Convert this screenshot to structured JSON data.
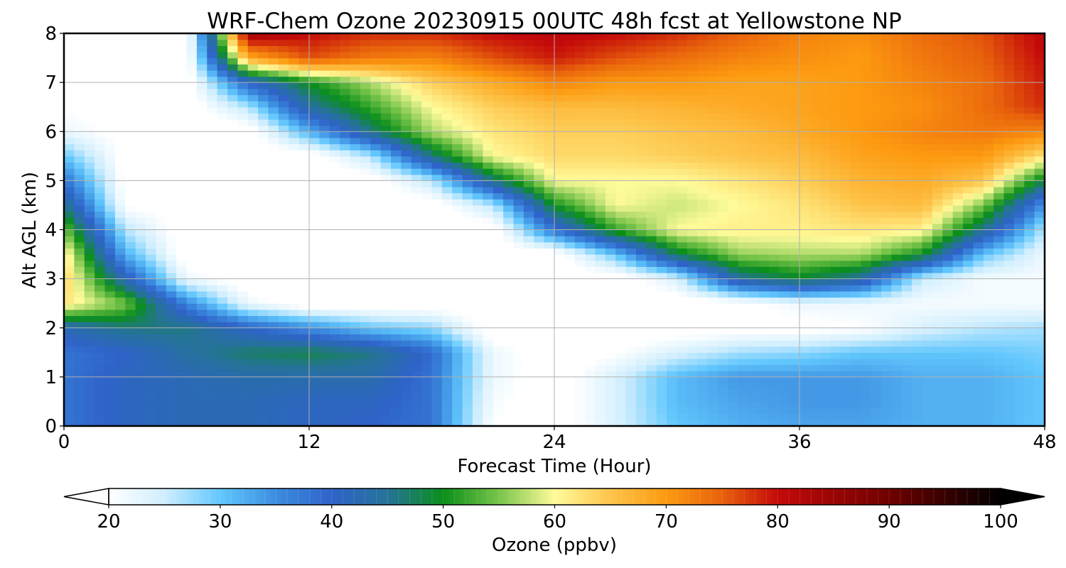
{
  "chart_data": {
    "type": "heatmap",
    "title": "WRF-Chem Ozone  20230915 00UTC 48h fcst at Yellowstone NP",
    "xlabel": "Forecast Time (Hour)",
    "ylabel": "Alt AGL (km)",
    "xlim": [
      0,
      48
    ],
    "ylim": [
      0,
      8
    ],
    "xticks": [
      0,
      12,
      24,
      36,
      48
    ],
    "yticks": [
      0,
      1,
      2,
      3,
      4,
      5,
      6,
      7,
      8
    ],
    "grid": true,
    "x": [
      0,
      3,
      6,
      9,
      12,
      15,
      18,
      21,
      24,
      27,
      30,
      33,
      36,
      39,
      42,
      45,
      48
    ],
    "y": [
      0,
      0.5,
      1,
      1.5,
      2,
      2.5,
      3,
      3.5,
      4,
      4.5,
      5,
      5.5,
      6,
      6.5,
      7,
      7.5,
      8
    ],
    "z": [
      [
        38,
        41,
        42,
        42,
        41,
        40,
        38,
        20,
        18,
        24,
        30,
        32,
        33,
        33,
        32,
        32,
        30
      ],
      [
        38,
        41,
        42,
        42,
        41,
        41,
        38,
        21,
        18,
        24,
        31,
        33,
        34,
        34,
        32,
        32,
        30
      ],
      [
        38,
        41,
        42,
        43,
        43,
        43,
        38,
        22,
        18,
        24,
        31,
        34,
        34,
        34,
        32,
        32,
        30
      ],
      [
        38,
        40,
        44,
        47,
        48,
        46,
        39,
        22,
        18,
        20,
        24,
        27,
        28,
        30,
        30,
        30,
        29
      ],
      [
        42,
        46,
        46,
        40,
        35,
        30,
        28,
        18,
        18,
        18,
        18,
        19,
        19,
        20,
        24,
        26,
        27
      ],
      [
        62,
        55,
        36,
        22,
        18,
        18,
        18,
        18,
        18,
        18,
        18,
        19,
        22,
        22,
        21,
        21,
        21
      ],
      [
        64,
        42,
        22,
        18,
        18,
        18,
        18,
        18,
        18,
        18,
        24,
        44,
        49,
        44,
        25,
        21,
        21
      ],
      [
        62,
        32,
        18,
        18,
        18,
        18,
        18,
        18,
        18,
        30,
        48,
        56,
        57,
        57,
        50,
        30,
        22
      ],
      [
        55,
        26,
        18,
        18,
        18,
        18,
        18,
        18,
        38,
        52,
        60,
        61,
        61,
        62,
        61,
        45,
        26
      ],
      [
        46,
        20,
        18,
        18,
        18,
        18,
        18,
        26,
        50,
        60,
        58,
        60,
        62,
        65,
        66,
        55,
        34
      ],
      [
        38,
        19,
        18,
        18,
        18,
        18,
        26,
        46,
        60,
        60,
        60,
        62,
        64,
        67,
        68,
        65,
        48
      ],
      [
        30,
        19,
        18,
        18,
        18,
        26,
        46,
        60,
        63,
        63,
        64,
        65,
        66,
        69,
        70,
        70,
        62
      ],
      [
        22,
        19,
        18,
        18,
        32,
        46,
        57,
        62,
        64,
        64,
        65,
        66,
        68,
        70,
        72,
        73,
        72
      ],
      [
        20,
        19,
        18,
        26,
        44,
        52,
        60,
        64,
        66,
        66,
        67,
        68,
        69,
        70,
        71,
        74,
        78
      ],
      [
        20,
        19,
        18,
        40,
        50,
        57,
        64,
        68,
        72,
        70,
        70,
        69,
        69,
        70,
        72,
        74,
        79
      ],
      [
        20,
        19,
        18,
        68,
        76,
        73,
        72,
        76,
        79,
        76,
        74,
        72,
        71,
        70,
        73,
        75,
        80
      ],
      [
        20,
        19,
        18,
        84,
        80,
        78,
        78,
        80,
        81,
        80,
        78,
        75,
        72,
        71,
        74,
        76,
        81
      ]
    ],
    "colorbar": {
      "label": "Ozone  (ppbv)",
      "min": 20,
      "max": 100,
      "extend": "both",
      "ticks": [
        20,
        30,
        40,
        50,
        60,
        70,
        80,
        90,
        100
      ],
      "colormap": [
        [
          20,
          "#ffffff"
        ],
        [
          25,
          "#cfeefe"
        ],
        [
          30,
          "#62c7fd"
        ],
        [
          35,
          "#3c8de0"
        ],
        [
          40,
          "#2f63c9"
        ],
        [
          45,
          "#257398"
        ],
        [
          50,
          "#0a8f1a"
        ],
        [
          55,
          "#78c44a"
        ],
        [
          60,
          "#fffb9a"
        ],
        [
          65,
          "#fdc44a"
        ],
        [
          70,
          "#fd9a10"
        ],
        [
          75,
          "#e8620c"
        ],
        [
          80,
          "#c40a0a"
        ],
        [
          90,
          "#700000"
        ],
        [
          100,
          "#000000"
        ]
      ]
    }
  }
}
